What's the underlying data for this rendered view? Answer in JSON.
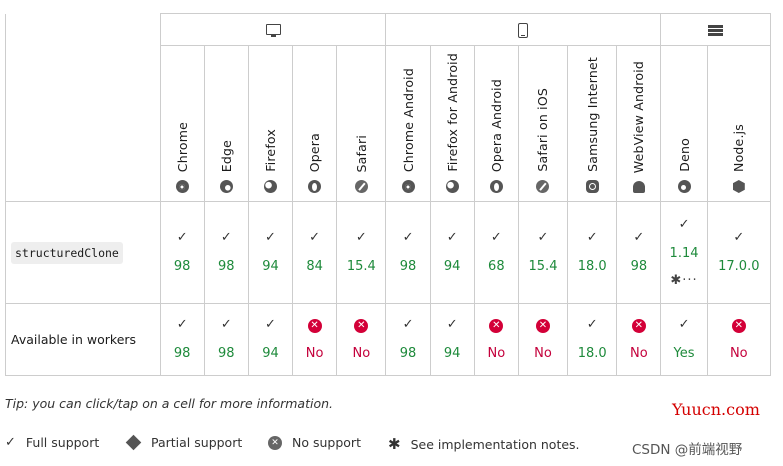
{
  "platforms": [
    {
      "icon": "desktop-icon",
      "span": 5
    },
    {
      "icon": "mobile-icon",
      "span": 6
    },
    {
      "icon": "server-icon",
      "span": 2
    }
  ],
  "browsers": [
    {
      "name": "Chrome",
      "icon": "chrome"
    },
    {
      "name": "Edge",
      "icon": "edge"
    },
    {
      "name": "Firefox",
      "icon": "firefox"
    },
    {
      "name": "Opera",
      "icon": "opera"
    },
    {
      "name": "Safari",
      "icon": "safari"
    },
    {
      "name": "Chrome Android",
      "icon": "chrome"
    },
    {
      "name": "Firefox for Android",
      "icon": "firefox"
    },
    {
      "name": "Opera Android",
      "icon": "opera"
    },
    {
      "name": "Safari on iOS",
      "icon": "safari"
    },
    {
      "name": "Samsung Internet",
      "icon": "samsung"
    },
    {
      "name": "WebView Android",
      "icon": "android"
    },
    {
      "name": "Deno",
      "icon": "deno"
    },
    {
      "name": "Node.js",
      "icon": "node"
    }
  ],
  "features": [
    {
      "name": "structuredClone",
      "is_code": true,
      "cells": [
        {
          "support": "yes",
          "mark": "✓",
          "value": "98"
        },
        {
          "support": "yes",
          "mark": "✓",
          "value": "98"
        },
        {
          "support": "yes",
          "mark": "✓",
          "value": "94"
        },
        {
          "support": "yes",
          "mark": "✓",
          "value": "84"
        },
        {
          "support": "yes",
          "mark": "✓",
          "value": "15.4"
        },
        {
          "support": "yes",
          "mark": "✓",
          "value": "98"
        },
        {
          "support": "yes",
          "mark": "✓",
          "value": "94"
        },
        {
          "support": "yes",
          "mark": "✓",
          "value": "68"
        },
        {
          "support": "yes",
          "mark": "✓",
          "value": "15.4"
        },
        {
          "support": "yes",
          "mark": "✓",
          "value": "18.0"
        },
        {
          "support": "yes",
          "mark": "✓",
          "value": "98"
        },
        {
          "support": "yes",
          "mark": "✓",
          "value": "1.14",
          "note": "✱···"
        },
        {
          "support": "yes",
          "mark": "✓",
          "value": "17.0.0"
        }
      ]
    },
    {
      "name": "Available in workers",
      "is_code": false,
      "cells": [
        {
          "support": "yes",
          "mark": "✓",
          "value": "98"
        },
        {
          "support": "yes",
          "mark": "✓",
          "value": "98"
        },
        {
          "support": "yes",
          "mark": "✓",
          "value": "94"
        },
        {
          "support": "no",
          "mark": "✕",
          "value": "No"
        },
        {
          "support": "no",
          "mark": "✕",
          "value": "No"
        },
        {
          "support": "yes",
          "mark": "✓",
          "value": "98"
        },
        {
          "support": "yes",
          "mark": "✓",
          "value": "94"
        },
        {
          "support": "no",
          "mark": "✕",
          "value": "No"
        },
        {
          "support": "no",
          "mark": "✕",
          "value": "No"
        },
        {
          "support": "yes",
          "mark": "✓",
          "value": "18.0"
        },
        {
          "support": "no",
          "mark": "✕",
          "value": "No"
        },
        {
          "support": "yes",
          "mark": "✓",
          "value": "Yes"
        },
        {
          "support": "no",
          "mark": "✕",
          "value": "No"
        }
      ]
    }
  ],
  "tip": "Tip: you can click/tap on a cell for more information.",
  "brand": "Yuucn.com",
  "legend": {
    "full": "Full support",
    "partial": "Partial support",
    "none": "No support",
    "notes": "See implementation notes."
  },
  "watermark": "CSDN @前端视野",
  "colors": {
    "support_yes": "#1e8a3b",
    "support_no": "#c4003b",
    "brand": "#d40000"
  }
}
